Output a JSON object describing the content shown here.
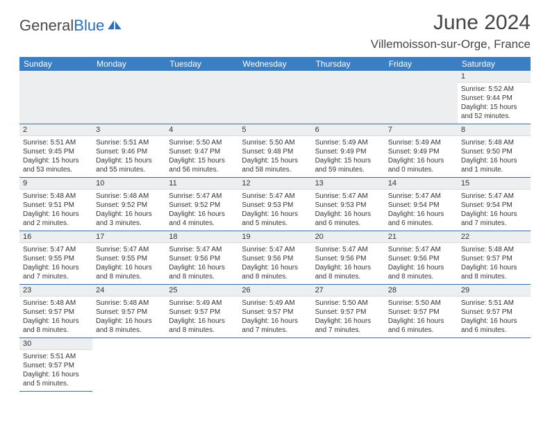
{
  "logo": {
    "text1": "General",
    "text2": "Blue"
  },
  "title": "June 2024",
  "location": "Villemoisson-sur-Orge, France",
  "header_bg": "#3a7fc4",
  "rule_color": "#2a6db8",
  "stripe_bg": "#eceeef",
  "days_of_week": [
    "Sunday",
    "Monday",
    "Tuesday",
    "Wednesday",
    "Thursday",
    "Friday",
    "Saturday"
  ],
  "cells": {
    "1": {
      "sunrise": "5:52 AM",
      "sunset": "9:44 PM",
      "daylight": "15 hours and 52 minutes."
    },
    "2": {
      "sunrise": "5:51 AM",
      "sunset": "9:45 PM",
      "daylight": "15 hours and 53 minutes."
    },
    "3": {
      "sunrise": "5:51 AM",
      "sunset": "9:46 PM",
      "daylight": "15 hours and 55 minutes."
    },
    "4": {
      "sunrise": "5:50 AM",
      "sunset": "9:47 PM",
      "daylight": "15 hours and 56 minutes."
    },
    "5": {
      "sunrise": "5:50 AM",
      "sunset": "9:48 PM",
      "daylight": "15 hours and 58 minutes."
    },
    "6": {
      "sunrise": "5:49 AM",
      "sunset": "9:49 PM",
      "daylight": "15 hours and 59 minutes."
    },
    "7": {
      "sunrise": "5:49 AM",
      "sunset": "9:49 PM",
      "daylight": "16 hours and 0 minutes."
    },
    "8": {
      "sunrise": "5:48 AM",
      "sunset": "9:50 PM",
      "daylight": "16 hours and 1 minute."
    },
    "9": {
      "sunrise": "5:48 AM",
      "sunset": "9:51 PM",
      "daylight": "16 hours and 2 minutes."
    },
    "10": {
      "sunrise": "5:48 AM",
      "sunset": "9:52 PM",
      "daylight": "16 hours and 3 minutes."
    },
    "11": {
      "sunrise": "5:47 AM",
      "sunset": "9:52 PM",
      "daylight": "16 hours and 4 minutes."
    },
    "12": {
      "sunrise": "5:47 AM",
      "sunset": "9:53 PM",
      "daylight": "16 hours and 5 minutes."
    },
    "13": {
      "sunrise": "5:47 AM",
      "sunset": "9:53 PM",
      "daylight": "16 hours and 6 minutes."
    },
    "14": {
      "sunrise": "5:47 AM",
      "sunset": "9:54 PM",
      "daylight": "16 hours and 6 minutes."
    },
    "15": {
      "sunrise": "5:47 AM",
      "sunset": "9:54 PM",
      "daylight": "16 hours and 7 minutes."
    },
    "16": {
      "sunrise": "5:47 AM",
      "sunset": "9:55 PM",
      "daylight": "16 hours and 7 minutes."
    },
    "17": {
      "sunrise": "5:47 AM",
      "sunset": "9:55 PM",
      "daylight": "16 hours and 8 minutes."
    },
    "18": {
      "sunrise": "5:47 AM",
      "sunset": "9:56 PM",
      "daylight": "16 hours and 8 minutes."
    },
    "19": {
      "sunrise": "5:47 AM",
      "sunset": "9:56 PM",
      "daylight": "16 hours and 8 minutes."
    },
    "20": {
      "sunrise": "5:47 AM",
      "sunset": "9:56 PM",
      "daylight": "16 hours and 8 minutes."
    },
    "21": {
      "sunrise": "5:47 AM",
      "sunset": "9:56 PM",
      "daylight": "16 hours and 8 minutes."
    },
    "22": {
      "sunrise": "5:48 AM",
      "sunset": "9:57 PM",
      "daylight": "16 hours and 8 minutes."
    },
    "23": {
      "sunrise": "5:48 AM",
      "sunset": "9:57 PM",
      "daylight": "16 hours and 8 minutes."
    },
    "24": {
      "sunrise": "5:48 AM",
      "sunset": "9:57 PM",
      "daylight": "16 hours and 8 minutes."
    },
    "25": {
      "sunrise": "5:49 AM",
      "sunset": "9:57 PM",
      "daylight": "16 hours and 8 minutes."
    },
    "26": {
      "sunrise": "5:49 AM",
      "sunset": "9:57 PM",
      "daylight": "16 hours and 7 minutes."
    },
    "27": {
      "sunrise": "5:50 AM",
      "sunset": "9:57 PM",
      "daylight": "16 hours and 7 minutes."
    },
    "28": {
      "sunrise": "5:50 AM",
      "sunset": "9:57 PM",
      "daylight": "16 hours and 6 minutes."
    },
    "29": {
      "sunrise": "5:51 AM",
      "sunset": "9:57 PM",
      "daylight": "16 hours and 6 minutes."
    },
    "30": {
      "sunrise": "5:51 AM",
      "sunset": "9:57 PM",
      "daylight": "16 hours and 5 minutes."
    }
  },
  "labels": {
    "sunrise": "Sunrise:",
    "sunset": "Sunset:",
    "daylight": "Daylight:"
  },
  "layout": [
    [
      null,
      null,
      null,
      null,
      null,
      null,
      "1"
    ],
    [
      "2",
      "3",
      "4",
      "5",
      "6",
      "7",
      "8"
    ],
    [
      "9",
      "10",
      "11",
      "12",
      "13",
      "14",
      "15"
    ],
    [
      "16",
      "17",
      "18",
      "19",
      "20",
      "21",
      "22"
    ],
    [
      "23",
      "24",
      "25",
      "26",
      "27",
      "28",
      "29"
    ],
    [
      "30",
      null,
      null,
      null,
      null,
      null,
      null
    ]
  ]
}
